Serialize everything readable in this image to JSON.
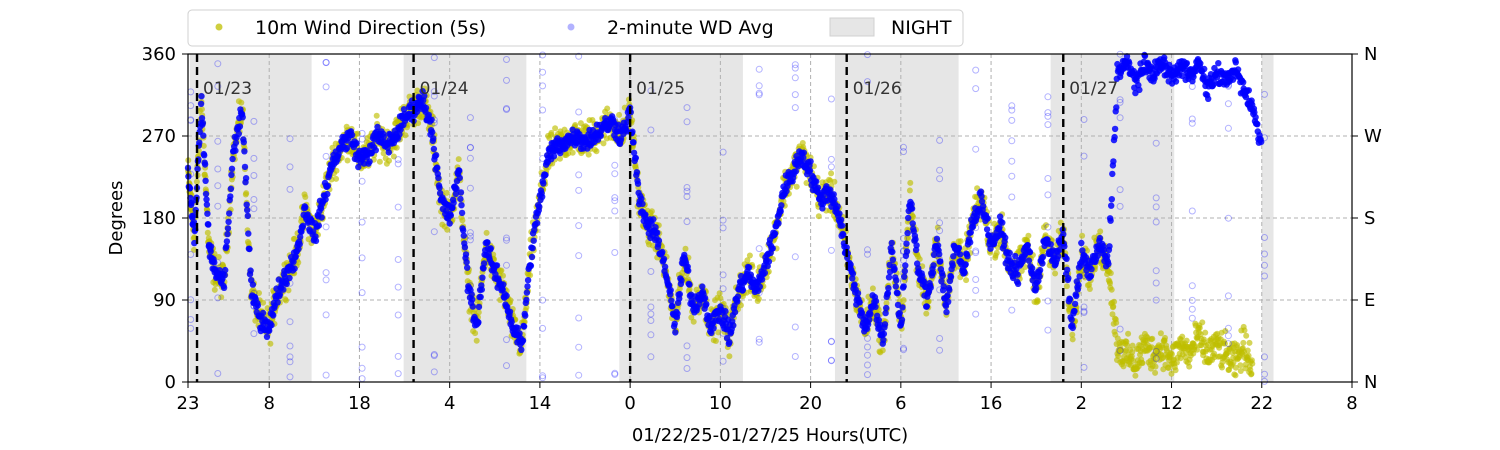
{
  "chart_data": {
    "type": "scatter",
    "xlabel": "01/22/25-01/27/25  Hours(UTC)",
    "ylabel": "Degrees",
    "x_unit": "hours from 2025-01-22 23:00 UTC",
    "xlim": [
      0,
      129
    ],
    "ylim": [
      0,
      360
    ],
    "y_ticks": [
      0,
      90,
      180,
      270,
      360
    ],
    "right_ticks": [
      "N",
      "E",
      "S",
      "W",
      "N"
    ],
    "x_ticks": [
      {
        "value": 0,
        "label": "23"
      },
      {
        "value": 9,
        "label": "8"
      },
      {
        "value": 19,
        "label": "18"
      },
      {
        "value": 29,
        "label": "4"
      },
      {
        "value": 39,
        "label": "14"
      },
      {
        "value": 49,
        "label": "0"
      },
      {
        "value": 59,
        "label": "10"
      },
      {
        "value": 69,
        "label": "20"
      },
      {
        "value": 79,
        "label": "6"
      },
      {
        "value": 89,
        "label": "16"
      },
      {
        "value": 99,
        "label": "2"
      },
      {
        "value": 109,
        "label": "12"
      },
      {
        "value": 119,
        "label": "22"
      },
      {
        "value": 129,
        "label": "8"
      }
    ],
    "day_boundaries": [
      {
        "x": 1,
        "label": "01/23"
      },
      {
        "x": 25,
        "label": "01/24"
      },
      {
        "x": 49,
        "label": "01/25"
      },
      {
        "x": 73,
        "label": "01/26"
      },
      {
        "x": 97,
        "label": "01/27"
      }
    ],
    "night_periods": [
      [
        0.2,
        13.7
      ],
      [
        23.9,
        37.5
      ],
      [
        47.8,
        61.5
      ],
      [
        71.7,
        85.4
      ],
      [
        95.6,
        109.3
      ],
      [
        119,
        120.3
      ]
    ],
    "legend": {
      "placement": "top, outside above plot",
      "entries": [
        {
          "label": "10m Wind Direction (5s)",
          "color": "#bfbf00"
        },
        {
          "label": "2-minute WD Avg",
          "color": "#0000ff"
        },
        {
          "label": "NIGHT",
          "color": "#e6e6e6"
        }
      ]
    },
    "grid": "dashed gray at major ticks",
    "series": [
      {
        "name": "10m Wind Direction (5s)",
        "color": "#bfbf00",
        "spread": 14,
        "points": [
          [
            0,
            230
          ],
          [
            0.7,
            160
          ],
          [
            1.5,
            310
          ],
          [
            2.3,
            150
          ],
          [
            3,
            120
          ],
          [
            4,
            110
          ],
          [
            5,
            250
          ],
          [
            6,
            300
          ],
          [
            7,
            100
          ],
          [
            8,
            70
          ],
          [
            9,
            60
          ],
          [
            10,
            100
          ],
          [
            11,
            120
          ],
          [
            12,
            140
          ],
          [
            13,
            190
          ],
          [
            14,
            160
          ],
          [
            15,
            200
          ],
          [
            16,
            240
          ],
          [
            17,
            260
          ],
          [
            18,
            270
          ],
          [
            19,
            245
          ],
          [
            20,
            250
          ],
          [
            21,
            270
          ],
          [
            22,
            260
          ],
          [
            23,
            270
          ],
          [
            24,
            290
          ],
          [
            25,
            300
          ],
          [
            26,
            310
          ],
          [
            27,
            280
          ],
          [
            28,
            200
          ],
          [
            29,
            180
          ],
          [
            30,
            230
          ],
          [
            31,
            110
          ],
          [
            32,
            60
          ],
          [
            33,
            150
          ],
          [
            34,
            120
          ],
          [
            35,
            100
          ],
          [
            36,
            60
          ],
          [
            37,
            40
          ],
          [
            38,
            140
          ],
          [
            39,
            200
          ],
          [
            40,
            250
          ],
          [
            41,
            260
          ],
          [
            42,
            265
          ],
          [
            43,
            270
          ],
          [
            44,
            265
          ],
          [
            45,
            270
          ],
          [
            46,
            280
          ],
          [
            47,
            285
          ],
          [
            48,
            270
          ],
          [
            49,
            295
          ],
          [
            50,
            200
          ],
          [
            51,
            170
          ],
          [
            52,
            160
          ],
          [
            53,
            120
          ],
          [
            54,
            60
          ],
          [
            55,
            140
          ],
          [
            56,
            80
          ],
          [
            57,
            100
          ],
          [
            58,
            60
          ],
          [
            59,
            80
          ],
          [
            60,
            50
          ],
          [
            61,
            100
          ],
          [
            62,
            120
          ],
          [
            63,
            100
          ],
          [
            64,
            130
          ],
          [
            65,
            160
          ],
          [
            66,
            210
          ],
          [
            67,
            230
          ],
          [
            68,
            250
          ],
          [
            69,
            230
          ],
          [
            70,
            200
          ],
          [
            71,
            210
          ],
          [
            72,
            190
          ],
          [
            73,
            140
          ],
          [
            74,
            100
          ],
          [
            75,
            60
          ],
          [
            76,
            90
          ],
          [
            77,
            40
          ],
          [
            78,
            150
          ],
          [
            79,
            60
          ],
          [
            80,
            200
          ],
          [
            81,
            120
          ],
          [
            82,
            90
          ],
          [
            83,
            160
          ],
          [
            84,
            80
          ],
          [
            85,
            150
          ],
          [
            86,
            120
          ],
          [
            87,
            180
          ],
          [
            88,
            200
          ],
          [
            89,
            150
          ],
          [
            90,
            170
          ],
          [
            91,
            130
          ],
          [
            92,
            120
          ],
          [
            93,
            150
          ],
          [
            94,
            100
          ],
          [
            95,
            160
          ],
          [
            96,
            130
          ],
          [
            97,
            160
          ],
          [
            98,
            60
          ],
          [
            99,
            140
          ],
          [
            100,
            120
          ],
          [
            101,
            150
          ],
          [
            102,
            130
          ],
          [
            103,
            40
          ],
          [
            104,
            30
          ],
          [
            105,
            20
          ],
          [
            106,
            40
          ],
          [
            107,
            30
          ],
          [
            108,
            40
          ],
          [
            109,
            20
          ],
          [
            110,
            40
          ],
          [
            111,
            30
          ],
          [
            112,
            50
          ],
          [
            113,
            30
          ],
          [
            114,
            40
          ],
          [
            115,
            30
          ],
          [
            116,
            20
          ],
          [
            117,
            40
          ],
          [
            118,
            20
          ]
        ]
      },
      {
        "name": "2-minute WD Avg",
        "color": "#0000ff",
        "spread": 8,
        "points": [
          [
            0,
            230
          ],
          [
            0.7,
            160
          ],
          [
            1.5,
            310
          ],
          [
            2.3,
            150
          ],
          [
            3,
            120
          ],
          [
            4,
            110
          ],
          [
            5,
            250
          ],
          [
            6,
            300
          ],
          [
            7,
            100
          ],
          [
            8,
            70
          ],
          [
            9,
            60
          ],
          [
            10,
            100
          ],
          [
            11,
            120
          ],
          [
            12,
            140
          ],
          [
            13,
            190
          ],
          [
            14,
            160
          ],
          [
            15,
            200
          ],
          [
            16,
            240
          ],
          [
            17,
            260
          ],
          [
            18,
            270
          ],
          [
            19,
            245
          ],
          [
            20,
            250
          ],
          [
            21,
            270
          ],
          [
            22,
            260
          ],
          [
            23,
            270
          ],
          [
            24,
            290
          ],
          [
            25,
            300
          ],
          [
            26,
            310
          ],
          [
            27,
            280
          ],
          [
            28,
            200
          ],
          [
            29,
            180
          ],
          [
            30,
            230
          ],
          [
            31,
            110
          ],
          [
            32,
            60
          ],
          [
            33,
            150
          ],
          [
            34,
            120
          ],
          [
            35,
            100
          ],
          [
            36,
            60
          ],
          [
            37,
            40
          ],
          [
            38,
            140
          ],
          [
            39,
            200
          ],
          [
            40,
            250
          ],
          [
            41,
            260
          ],
          [
            42,
            265
          ],
          [
            43,
            270
          ],
          [
            44,
            265
          ],
          [
            45,
            270
          ],
          [
            46,
            280
          ],
          [
            47,
            285
          ],
          [
            48,
            270
          ],
          [
            49,
            295
          ],
          [
            50,
            200
          ],
          [
            51,
            170
          ],
          [
            52,
            160
          ],
          [
            53,
            120
          ],
          [
            54,
            60
          ],
          [
            55,
            140
          ],
          [
            56,
            80
          ],
          [
            57,
            100
          ],
          [
            58,
            60
          ],
          [
            59,
            80
          ],
          [
            60,
            50
          ],
          [
            61,
            100
          ],
          [
            62,
            120
          ],
          [
            63,
            100
          ],
          [
            64,
            130
          ],
          [
            65,
            160
          ],
          [
            66,
            210
          ],
          [
            67,
            230
          ],
          [
            68,
            250
          ],
          [
            69,
            230
          ],
          [
            70,
            200
          ],
          [
            71,
            210
          ],
          [
            72,
            190
          ],
          [
            73,
            140
          ],
          [
            74,
            100
          ],
          [
            75,
            60
          ],
          [
            76,
            90
          ],
          [
            77,
            40
          ],
          [
            78,
            150
          ],
          [
            79,
            60
          ],
          [
            80,
            200
          ],
          [
            81,
            120
          ],
          [
            82,
            90
          ],
          [
            83,
            160
          ],
          [
            84,
            80
          ],
          [
            85,
            150
          ],
          [
            86,
            120
          ],
          [
            87,
            180
          ],
          [
            88,
            200
          ],
          [
            89,
            150
          ],
          [
            90,
            170
          ],
          [
            91,
            130
          ],
          [
            92,
            120
          ],
          [
            93,
            150
          ],
          [
            94,
            100
          ],
          [
            95,
            160
          ],
          [
            96,
            130
          ],
          [
            97,
            160
          ],
          [
            98,
            60
          ],
          [
            99,
            140
          ],
          [
            100,
            120
          ],
          [
            101,
            150
          ],
          [
            102,
            130
          ],
          [
            103,
            340
          ],
          [
            104,
            350
          ],
          [
            105,
            330
          ],
          [
            106,
            345
          ],
          [
            107,
            340
          ],
          [
            108,
            350
          ],
          [
            109,
            335
          ],
          [
            110,
            345
          ],
          [
            111,
            340
          ],
          [
            112,
            350
          ],
          [
            113,
            320
          ],
          [
            114,
            340
          ],
          [
            115,
            330
          ],
          [
            116,
            345
          ],
          [
            117,
            320
          ],
          [
            118,
            300
          ],
          [
            119,
            260
          ]
        ]
      }
    ]
  }
}
